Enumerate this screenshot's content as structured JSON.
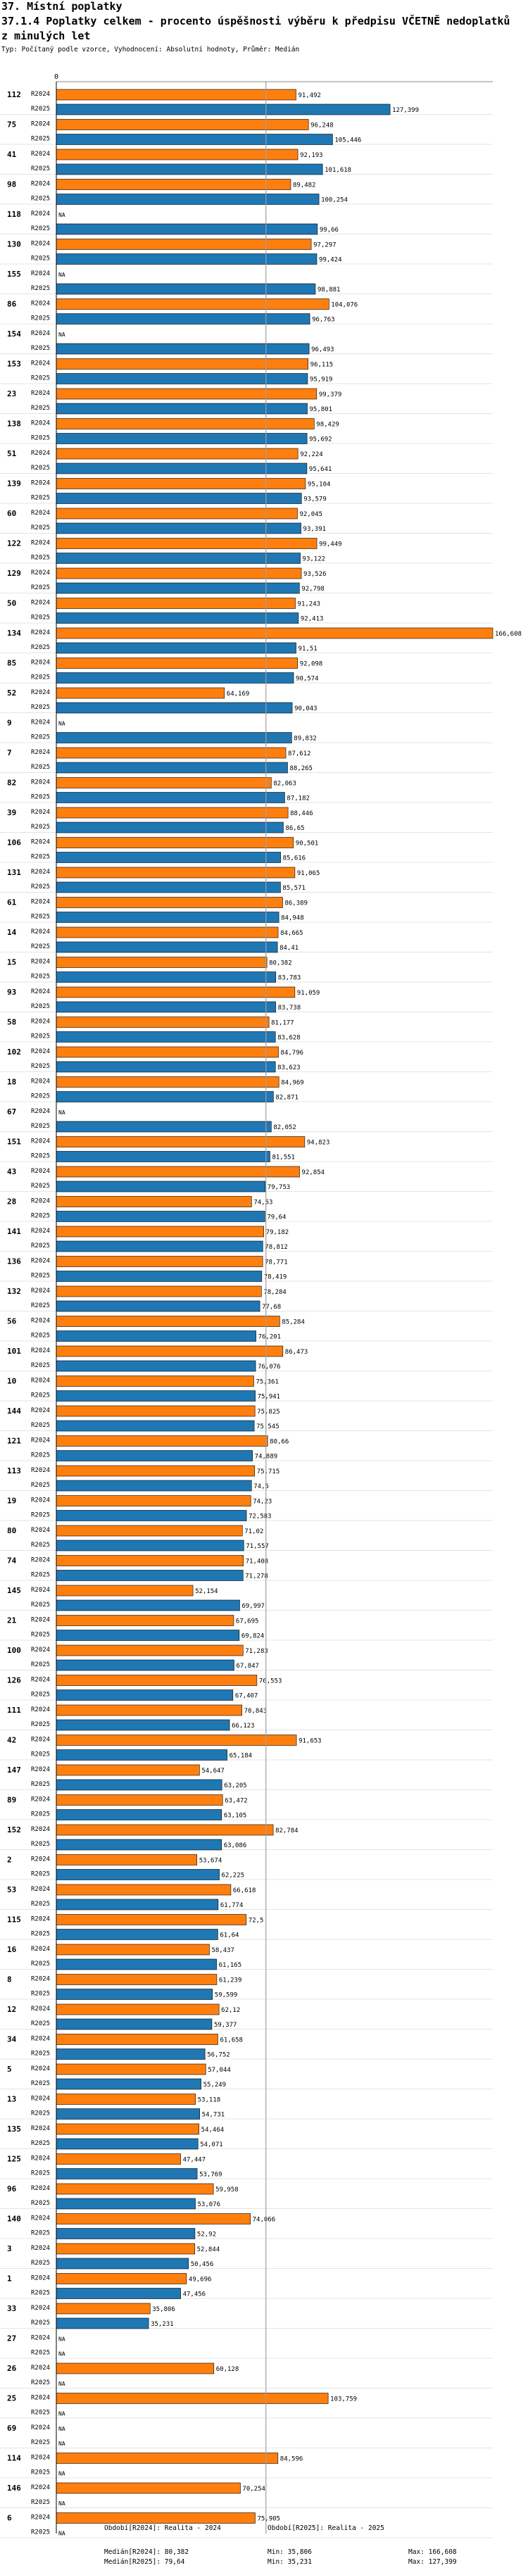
{
  "page": {
    "section_title": "37. Místní poplatky",
    "chart_title": "37.1.4 Poplatky celkem - procento úspěšnosti výběru k předpisu VČETNĚ nedoplatků z minulých let",
    "subtitle": "Typ: Počítaný podle vzorce, Vyhodnocení: Absolutní hodnoty, Průměr: Medián"
  },
  "colors": {
    "r2024": "#ff7f0e",
    "r2025": "#1f77b4",
    "median_line": "#a0a0a0"
  },
  "chart_data": {
    "type": "bar",
    "orientation": "horizontal",
    "axis_zero_label": "0",
    "series_labels": [
      "R2024",
      "R2025"
    ],
    "na_label": "NA",
    "xlim": [
      0,
      166.608
    ],
    "categories": [
      {
        "id": "112",
        "r2024": 91.492,
        "r2025": 127.399
      },
      {
        "id": "75",
        "r2024": 96.248,
        "r2025": 105.446
      },
      {
        "id": "41",
        "r2024": 92.193,
        "r2025": 101.618
      },
      {
        "id": "98",
        "r2024": 89.482,
        "r2025": 100.254
      },
      {
        "id": "118",
        "r2024": null,
        "r2025": 99.66
      },
      {
        "id": "130",
        "r2024": 97.297,
        "r2025": 99.424
      },
      {
        "id": "155",
        "r2024": null,
        "r2025": 98.881
      },
      {
        "id": "86",
        "r2024": 104.076,
        "r2025": 96.763
      },
      {
        "id": "154",
        "r2024": null,
        "r2025": 96.493
      },
      {
        "id": "153",
        "r2024": 96.115,
        "r2025": 95.919
      },
      {
        "id": "23",
        "r2024": 99.379,
        "r2025": 95.801
      },
      {
        "id": "138",
        "r2024": 98.429,
        "r2025": 95.692
      },
      {
        "id": "51",
        "r2024": 92.224,
        "r2025": 95.641
      },
      {
        "id": "139",
        "r2024": 95.104,
        "r2025": 93.579
      },
      {
        "id": "60",
        "r2024": 92.045,
        "r2025": 93.391
      },
      {
        "id": "122",
        "r2024": 99.449,
        "r2025": 93.122
      },
      {
        "id": "129",
        "r2024": 93.526,
        "r2025": 92.798
      },
      {
        "id": "50",
        "r2024": 91.243,
        "r2025": 92.413
      },
      {
        "id": "134",
        "r2024": 166.608,
        "r2025": 91.51
      },
      {
        "id": "85",
        "r2024": 92.098,
        "r2025": 90.574
      },
      {
        "id": "52",
        "r2024": 64.169,
        "r2025": 90.043
      },
      {
        "id": "9",
        "r2024": null,
        "r2025": 89.832
      },
      {
        "id": "7",
        "r2024": 87.612,
        "r2025": 88.265
      },
      {
        "id": "82",
        "r2024": 82.063,
        "r2025": 87.182
      },
      {
        "id": "39",
        "r2024": 88.446,
        "r2025": 86.65
      },
      {
        "id": "106",
        "r2024": 90.501,
        "r2025": 85.616
      },
      {
        "id": "131",
        "r2024": 91.065,
        "r2025": 85.571
      },
      {
        "id": "61",
        "r2024": 86.389,
        "r2025": 84.948
      },
      {
        "id": "14",
        "r2024": 84.665,
        "r2025": 84.41
      },
      {
        "id": "15",
        "r2024": 80.382,
        "r2025": 83.783
      },
      {
        "id": "93",
        "r2024": 91.059,
        "r2025": 83.738
      },
      {
        "id": "58",
        "r2024": 81.177,
        "r2025": 83.628
      },
      {
        "id": "102",
        "r2024": 84.796,
        "r2025": 83.623
      },
      {
        "id": "18",
        "r2024": 84.969,
        "r2025": 82.871
      },
      {
        "id": "67",
        "r2024": null,
        "r2025": 82.052
      },
      {
        "id": "151",
        "r2024": 94.823,
        "r2025": 81.551
      },
      {
        "id": "43",
        "r2024": 92.854,
        "r2025": 79.753
      },
      {
        "id": "28",
        "r2024": 74.53,
        "r2025": 79.64
      },
      {
        "id": "141",
        "r2024": 79.182,
        "r2025": 78.812
      },
      {
        "id": "136",
        "r2024": 78.771,
        "r2025": 78.419
      },
      {
        "id": "132",
        "r2024": 78.284,
        "r2025": 77.68
      },
      {
        "id": "56",
        "r2024": 85.284,
        "r2025": 76.201
      },
      {
        "id": "101",
        "r2024": 86.473,
        "r2025": 76.076
      },
      {
        "id": "10",
        "r2024": 75.361,
        "r2025": 75.941
      },
      {
        "id": "144",
        "r2024": 75.825,
        "r2025": 75.545
      },
      {
        "id": "121",
        "r2024": 80.66,
        "r2025": 74.889
      },
      {
        "id": "113",
        "r2024": 75.715,
        "r2025": 74.5
      },
      {
        "id": "19",
        "r2024": 74.23,
        "r2025": 72.583
      },
      {
        "id": "80",
        "r2024": 71.02,
        "r2025": 71.557
      },
      {
        "id": "74",
        "r2024": 71.408,
        "r2025": 71.278
      },
      {
        "id": "145",
        "r2024": 52.154,
        "r2025": 69.997
      },
      {
        "id": "21",
        "r2024": 67.695,
        "r2025": 69.824
      },
      {
        "id": "100",
        "r2024": 71.283,
        "r2025": 67.847
      },
      {
        "id": "126",
        "r2024": 76.553,
        "r2025": 67.407
      },
      {
        "id": "111",
        "r2024": 70.843,
        "r2025": 66.123
      },
      {
        "id": "42",
        "r2024": 91.653,
        "r2025": 65.184
      },
      {
        "id": "147",
        "r2024": 54.647,
        "r2025": 63.205
      },
      {
        "id": "89",
        "r2024": 63.472,
        "r2025": 63.105
      },
      {
        "id": "152",
        "r2024": 82.784,
        "r2025": 63.086
      },
      {
        "id": "2",
        "r2024": 53.674,
        "r2025": 62.225
      },
      {
        "id": "53",
        "r2024": 66.618,
        "r2025": 61.774
      },
      {
        "id": "115",
        "r2024": 72.5,
        "r2025": 61.64
      },
      {
        "id": "16",
        "r2024": 58.437,
        "r2025": 61.165
      },
      {
        "id": "8",
        "r2024": 61.239,
        "r2025": 59.599
      },
      {
        "id": "12",
        "r2024": 62.12,
        "r2025": 59.377
      },
      {
        "id": "34",
        "r2024": 61.658,
        "r2025": 56.752
      },
      {
        "id": "5",
        "r2024": 57.044,
        "r2025": 55.249
      },
      {
        "id": "13",
        "r2024": 53.118,
        "r2025": 54.731
      },
      {
        "id": "135",
        "r2024": 54.464,
        "r2025": 54.071
      },
      {
        "id": "125",
        "r2024": 47.447,
        "r2025": 53.769
      },
      {
        "id": "96",
        "r2024": 59.958,
        "r2025": 53.076
      },
      {
        "id": "140",
        "r2024": 74.066,
        "r2025": 52.92
      },
      {
        "id": "3",
        "r2024": 52.844,
        "r2025": 50.456
      },
      {
        "id": "1",
        "r2024": 49.696,
        "r2025": 47.456
      },
      {
        "id": "33",
        "r2024": 35.806,
        "r2025": 35.231
      },
      {
        "id": "27",
        "r2024": null,
        "r2025": null
      },
      {
        "id": "26",
        "r2024": 60.128,
        "r2025": null
      },
      {
        "id": "25",
        "r2024": 103.759,
        "r2025": null
      },
      {
        "id": "69",
        "r2024": null,
        "r2025": null
      },
      {
        "id": "114",
        "r2024": 84.596,
        "r2025": null
      },
      {
        "id": "146",
        "r2024": 70.254,
        "r2025": null
      },
      {
        "id": "6",
        "r2024": 75.905,
        "r2025": null
      }
    ],
    "median_2024": 80.382,
    "median_2025": 79.64
  },
  "footer": {
    "period_2024": "Období[R2024]: Realita - 2024",
    "period_2025": "Období[R2025]: Realita - 2025",
    "median_2024": "Medián[R2024]: 80,382",
    "median_2025": "Medián[R2025]: 79,64",
    "min_2024": "Min: 35,806",
    "min_2025": "Min: 35,231",
    "max_2024": "Max: 166,608",
    "max_2025": "Max: 127,399"
  }
}
